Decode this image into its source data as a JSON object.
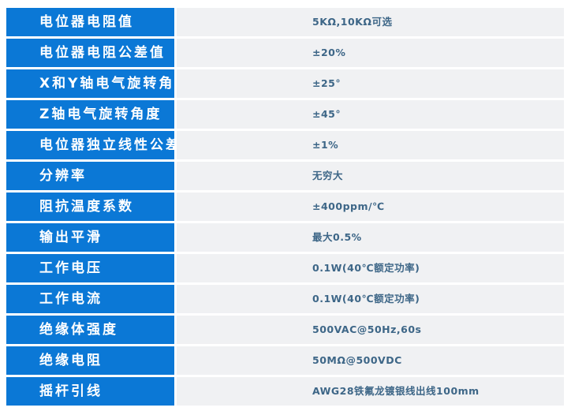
{
  "spec_table": {
    "rows": [
      {
        "label": "电位器电阻值",
        "value": "5KΩ,10KΩ可选"
      },
      {
        "label": "电位器电阻公差值",
        "value": "±20%"
      },
      {
        "label": "X和Y轴电气旋转角度",
        "value": "±25°"
      },
      {
        "label": "Z轴电气旋转角度",
        "value": "±45°"
      },
      {
        "label": "电位器独立线性公差",
        "value": "±1%"
      },
      {
        "label": "分辨率",
        "value": "无穷大"
      },
      {
        "label": "阻抗温度系数",
        "value": "±400ppm/℃"
      },
      {
        "label": "输出平滑",
        "value": "最大0.5%"
      },
      {
        "label": "工作电压",
        "value": "0.1W(40℃额定功率)"
      },
      {
        "label": "工作电流",
        "value": "0.1W(40℃额定功率)"
      },
      {
        "label": "绝缘体强度",
        "value": "500VAC@50Hz,60s"
      },
      {
        "label": "绝缘电阻",
        "value": "50MΩ@500VDC"
      },
      {
        "label": "摇杆引线",
        "value": "AWG28铁氟龙镀银线出线100mm"
      }
    ]
  },
  "colors": {
    "header_blue": "#0b78d6",
    "value_bg": "#f0f1f3",
    "value_text": "#3d6687"
  }
}
